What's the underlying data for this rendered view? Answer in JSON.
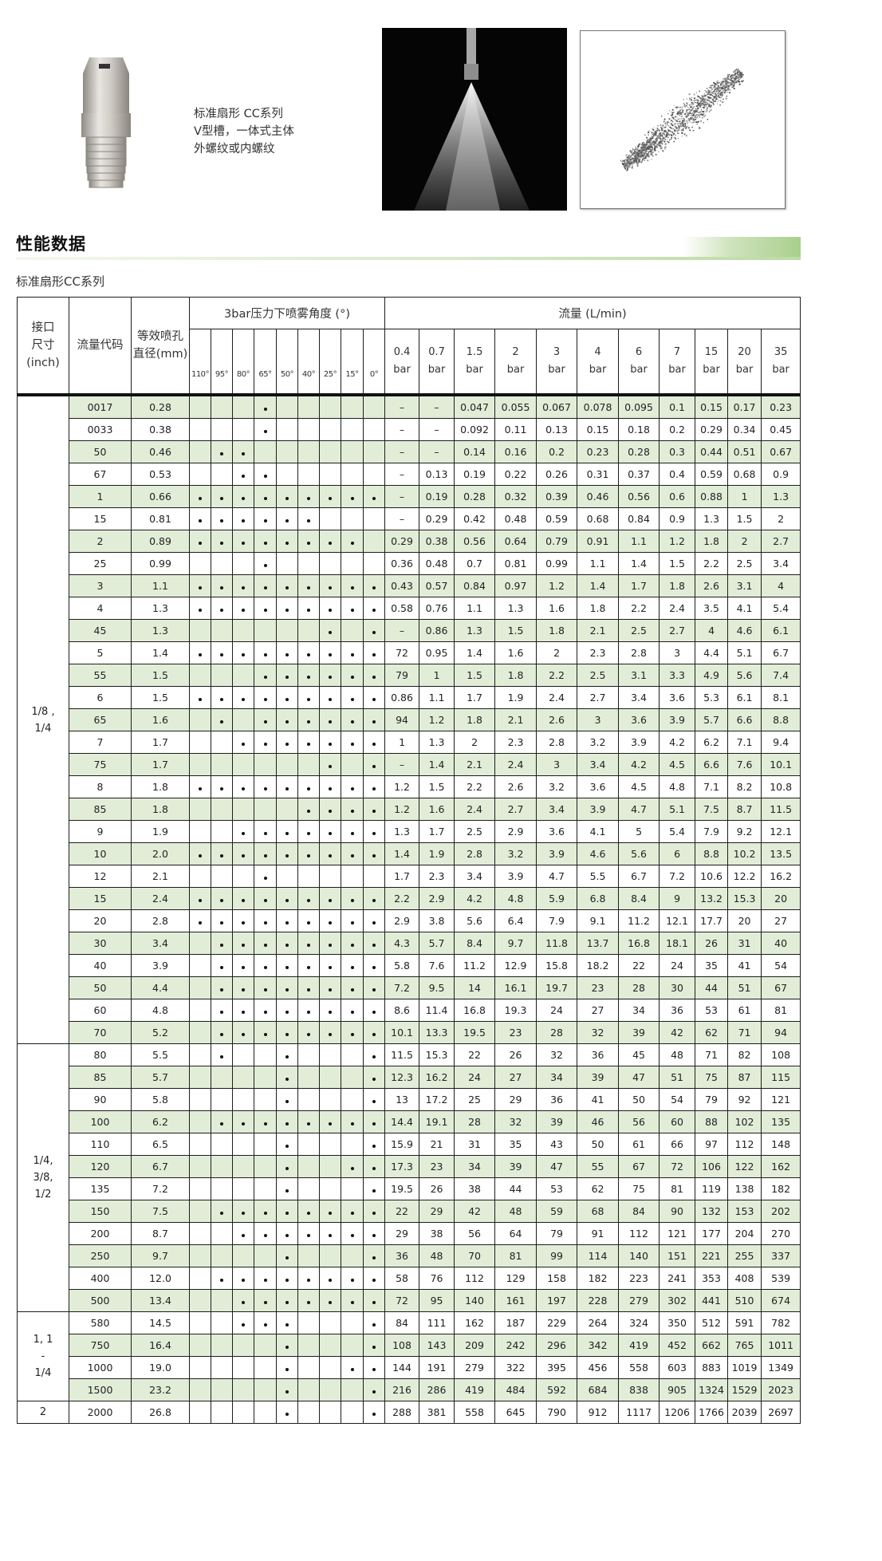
{
  "product": {
    "description_lines": [
      "标准扇形 CC系列",
      "V型槽，一体式主体",
      "外螺纹或内螺纹"
    ]
  },
  "section": {
    "title": "性能数据",
    "subtitle": "标准扇形CC系列",
    "accent_color": "#a9cf8d",
    "row_stripe_color": "#e2edd8"
  },
  "table": {
    "headers": {
      "inch": "接口\n尺寸\n(inch)",
      "code": "流量代码",
      "diameter": "等效喷孔\n直径(mm)",
      "angle_group": "3bar压力下喷雾角度 (°)",
      "flow_group": "流量 (L/min)"
    },
    "angles": [
      "110°",
      "95°",
      "80°",
      "65°",
      "50°",
      "40°",
      "25°",
      "15°",
      "0°"
    ],
    "pressures": [
      "0.4\nbar",
      "0.7\nbar",
      "1.5\nbar",
      "2\nbar",
      "3\nbar",
      "4\nbar",
      "6\nbar",
      "7\nbar",
      "15\nbar",
      "20\nbar",
      "35\nbar"
    ],
    "groups": [
      {
        "label": "1/8 ,\n1/4",
        "rows": 29
      },
      {
        "label": "1/4,\n3/8,\n1/2",
        "rows": 12
      },
      {
        "label": "1, 1\n-\n1/4",
        "rows": 4
      },
      {
        "label": "2",
        "rows": 1
      }
    ],
    "rows": [
      {
        "code": "0017",
        "d": "0.28",
        "a": "000100000",
        "f": [
          "–",
          "–",
          "0.047",
          "0.055",
          "0.067",
          "0.078",
          "0.095",
          "0.1",
          "0.15",
          "0.17",
          "0.23"
        ]
      },
      {
        "code": "0033",
        "d": "0.38",
        "a": "000100000",
        "f": [
          "–",
          "–",
          "0.092",
          "0.11",
          "0.13",
          "0.15",
          "0.18",
          "0.2",
          "0.29",
          "0.34",
          "0.45"
        ]
      },
      {
        "code": "50",
        "d": "0.46",
        "a": "011000000",
        "f": [
          "–",
          "–",
          "0.14",
          "0.16",
          "0.2",
          "0.23",
          "0.28",
          "0.3",
          "0.44",
          "0.51",
          "0.67"
        ]
      },
      {
        "code": "67",
        "d": "0.53",
        "a": "001100000",
        "f": [
          "–",
          "0.13",
          "0.19",
          "0.22",
          "0.26",
          "0.31",
          "0.37",
          "0.4",
          "0.59",
          "0.68",
          "0.9"
        ]
      },
      {
        "code": "1",
        "d": "0.66",
        "a": "111111111",
        "f": [
          "–",
          "0.19",
          "0.28",
          "0.32",
          "0.39",
          "0.46",
          "0.56",
          "0.6",
          "0.88",
          "1",
          "1.3"
        ]
      },
      {
        "code": "15",
        "d": "0.81",
        "a": "111111000",
        "f": [
          "–",
          "0.29",
          "0.42",
          "0.48",
          "0.59",
          "0.68",
          "0.84",
          "0.9",
          "1.3",
          "1.5",
          "2"
        ]
      },
      {
        "code": "2",
        "d": "0.89",
        "a": "111111110",
        "f": [
          "0.29",
          "0.38",
          "0.56",
          "0.64",
          "0.79",
          "0.91",
          "1.1",
          "1.2",
          "1.8",
          "2",
          "2.7"
        ]
      },
      {
        "code": "25",
        "d": "0.99",
        "a": "000100000",
        "f": [
          "0.36",
          "0.48",
          "0.7",
          "0.81",
          "0.99",
          "1.1",
          "1.4",
          "1.5",
          "2.2",
          "2.5",
          "3.4"
        ]
      },
      {
        "code": "3",
        "d": "1.1",
        "a": "111111111",
        "f": [
          "0.43",
          "0.57",
          "0.84",
          "0.97",
          "1.2",
          "1.4",
          "1.7",
          "1.8",
          "2.6",
          "3.1",
          "4"
        ]
      },
      {
        "code": "4",
        "d": "1.3",
        "a": "111111111",
        "f": [
          "0.58",
          "0.76",
          "1.1",
          "1.3",
          "1.6",
          "1.8",
          "2.2",
          "2.4",
          "3.5",
          "4.1",
          "5.4"
        ]
      },
      {
        "code": "45",
        "d": "1.3",
        "a": "000000101",
        "f": [
          "–",
          "0.86",
          "1.3",
          "1.5",
          "1.8",
          "2.1",
          "2.5",
          "2.7",
          "4",
          "4.6",
          "6.1"
        ]
      },
      {
        "code": "5",
        "d": "1.4",
        "a": "111111111",
        "f": [
          "72",
          "0.95",
          "1.4",
          "1.6",
          "2",
          "2.3",
          "2.8",
          "3",
          "4.4",
          "5.1",
          "6.7"
        ]
      },
      {
        "code": "55",
        "d": "1.5",
        "a": "000111111",
        "f": [
          "79",
          "1",
          "1.5",
          "1.8",
          "2.2",
          "2.5",
          "3.1",
          "3.3",
          "4.9",
          "5.6",
          "7.4"
        ]
      },
      {
        "code": "6",
        "d": "1.5",
        "a": "111111111",
        "f": [
          "0.86",
          "1.1",
          "1.7",
          "1.9",
          "2.4",
          "2.7",
          "3.4",
          "3.6",
          "5.3",
          "6.1",
          "8.1"
        ]
      },
      {
        "code": "65",
        "d": "1.6",
        "a": "010111111",
        "f": [
          "94",
          "1.2",
          "1.8",
          "2.1",
          "2.6",
          "3",
          "3.6",
          "3.9",
          "5.7",
          "6.6",
          "8.8"
        ]
      },
      {
        "code": "7",
        "d": "1.7",
        "a": "001111111",
        "f": [
          "1",
          "1.3",
          "2",
          "2.3",
          "2.8",
          "3.2",
          "3.9",
          "4.2",
          "6.2",
          "7.1",
          "9.4"
        ]
      },
      {
        "code": "75",
        "d": "1.7",
        "a": "000000101",
        "f": [
          "–",
          "1.4",
          "2.1",
          "2.4",
          "3",
          "3.4",
          "4.2",
          "4.5",
          "6.6",
          "7.6",
          "10.1"
        ]
      },
      {
        "code": "8",
        "d": "1.8",
        "a": "111111111",
        "f": [
          "1.2",
          "1.5",
          "2.2",
          "2.6",
          "3.2",
          "3.6",
          "4.5",
          "4.8",
          "7.1",
          "8.2",
          "10.8"
        ]
      },
      {
        "code": "85",
        "d": "1.8",
        "a": "000001111",
        "f": [
          "1.2",
          "1.6",
          "2.4",
          "2.7",
          "3.4",
          "3.9",
          "4.7",
          "5.1",
          "7.5",
          "8.7",
          "11.5"
        ]
      },
      {
        "code": "9",
        "d": "1.9",
        "a": "001111111",
        "f": [
          "1.3",
          "1.7",
          "2.5",
          "2.9",
          "3.6",
          "4.1",
          "5",
          "5.4",
          "7.9",
          "9.2",
          "12.1"
        ]
      },
      {
        "code": "10",
        "d": "2.0",
        "a": "111111111",
        "f": [
          "1.4",
          "1.9",
          "2.8",
          "3.2",
          "3.9",
          "4.6",
          "5.6",
          "6",
          "8.8",
          "10.2",
          "13.5"
        ]
      },
      {
        "code": "12",
        "d": "2.1",
        "a": "000100000",
        "f": [
          "1.7",
          "2.3",
          "3.4",
          "3.9",
          "4.7",
          "5.5",
          "6.7",
          "7.2",
          "10.6",
          "12.2",
          "16.2"
        ]
      },
      {
        "code": "15",
        "d": "2.4",
        "a": "111111111",
        "f": [
          "2.2",
          "2.9",
          "4.2",
          "4.8",
          "5.9",
          "6.8",
          "8.4",
          "9",
          "13.2",
          "15.3",
          "20"
        ]
      },
      {
        "code": "20",
        "d": "2.8",
        "a": "111111111",
        "f": [
          "2.9",
          "3.8",
          "5.6",
          "6.4",
          "7.9",
          "9.1",
          "11.2",
          "12.1",
          "17.7",
          "20",
          "27"
        ]
      },
      {
        "code": "30",
        "d": "3.4",
        "a": "011111111",
        "f": [
          "4.3",
          "5.7",
          "8.4",
          "9.7",
          "11.8",
          "13.7",
          "16.8",
          "18.1",
          "26",
          "31",
          "40"
        ]
      },
      {
        "code": "40",
        "d": "3.9",
        "a": "011111111",
        "f": [
          "5.8",
          "7.6",
          "11.2",
          "12.9",
          "15.8",
          "18.2",
          "22",
          "24",
          "35",
          "41",
          "54"
        ]
      },
      {
        "code": "50",
        "d": "4.4",
        "a": "011111111",
        "f": [
          "7.2",
          "9.5",
          "14",
          "16.1",
          "19.7",
          "23",
          "28",
          "30",
          "44",
          "51",
          "67"
        ]
      },
      {
        "code": "60",
        "d": "4.8",
        "a": "011111111",
        "f": [
          "8.6",
          "11.4",
          "16.8",
          "19.3",
          "24",
          "27",
          "34",
          "36",
          "53",
          "61",
          "81"
        ]
      },
      {
        "code": "70",
        "d": "5.2",
        "a": "011111111",
        "f": [
          "10.1",
          "13.3",
          "19.5",
          "23",
          "28",
          "32",
          "39",
          "42",
          "62",
          "71",
          "94"
        ]
      },
      {
        "code": "80",
        "d": "5.5",
        "a": "010010001",
        "f": [
          "11.5",
          "15.3",
          "22",
          "26",
          "32",
          "36",
          "45",
          "48",
          "71",
          "82",
          "108"
        ]
      },
      {
        "code": "85",
        "d": "5.7",
        "a": "000010001",
        "f": [
          "12.3",
          "16.2",
          "24",
          "27",
          "34",
          "39",
          "47",
          "51",
          "75",
          "87",
          "115"
        ]
      },
      {
        "code": "90",
        "d": "5.8",
        "a": "000010001",
        "f": [
          "13",
          "17.2",
          "25",
          "29",
          "36",
          "41",
          "50",
          "54",
          "79",
          "92",
          "121"
        ]
      },
      {
        "code": "100",
        "d": "6.2",
        "a": "011111111",
        "f": [
          "14.4",
          "19.1",
          "28",
          "32",
          "39",
          "46",
          "56",
          "60",
          "88",
          "102",
          "135"
        ]
      },
      {
        "code": "110",
        "d": "6.5",
        "a": "000010001",
        "f": [
          "15.9",
          "21",
          "31",
          "35",
          "43",
          "50",
          "61",
          "66",
          "97",
          "112",
          "148"
        ]
      },
      {
        "code": "120",
        "d": "6.7",
        "a": "000010011",
        "f": [
          "17.3",
          "23",
          "34",
          "39",
          "47",
          "55",
          "67",
          "72",
          "106",
          "122",
          "162"
        ]
      },
      {
        "code": "135",
        "d": "7.2",
        "a": "000010001",
        "f": [
          "19.5",
          "26",
          "38",
          "44",
          "53",
          "62",
          "75",
          "81",
          "119",
          "138",
          "182"
        ]
      },
      {
        "code": "150",
        "d": "7.5",
        "a": "011111111",
        "f": [
          "22",
          "29",
          "42",
          "48",
          "59",
          "68",
          "84",
          "90",
          "132",
          "153",
          "202"
        ]
      },
      {
        "code": "200",
        "d": "8.7",
        "a": "001111111",
        "f": [
          "29",
          "38",
          "56",
          "64",
          "79",
          "91",
          "112",
          "121",
          "177",
          "204",
          "270"
        ]
      },
      {
        "code": "250",
        "d": "9.7",
        "a": "000010001",
        "f": [
          "36",
          "48",
          "70",
          "81",
          "99",
          "114",
          "140",
          "151",
          "221",
          "255",
          "337"
        ]
      },
      {
        "code": "400",
        "d": "12.0",
        "a": "011111111",
        "f": [
          "58",
          "76",
          "112",
          "129",
          "158",
          "182",
          "223",
          "241",
          "353",
          "408",
          "539"
        ]
      },
      {
        "code": "500",
        "d": "13.4",
        "a": "001111111",
        "f": [
          "72",
          "95",
          "140",
          "161",
          "197",
          "228",
          "279",
          "302",
          "441",
          "510",
          "674"
        ]
      },
      {
        "code": "580",
        "d": "14.5",
        "a": "001110001",
        "f": [
          "84",
          "111",
          "162",
          "187",
          "229",
          "264",
          "324",
          "350",
          "512",
          "591",
          "782"
        ]
      },
      {
        "code": "750",
        "d": "16.4",
        "a": "000010001",
        "f": [
          "108",
          "143",
          "209",
          "242",
          "296",
          "342",
          "419",
          "452",
          "662",
          "765",
          "1011"
        ]
      },
      {
        "code": "1000",
        "d": "19.0",
        "a": "000010011",
        "f": [
          "144",
          "191",
          "279",
          "322",
          "395",
          "456",
          "558",
          "603",
          "883",
          "1019",
          "1349"
        ]
      },
      {
        "code": "1500",
        "d": "23.2",
        "a": "000010001",
        "f": [
          "216",
          "286",
          "419",
          "484",
          "592",
          "684",
          "838",
          "905",
          "1324",
          "1529",
          "2023"
        ]
      },
      {
        "code": "2000",
        "d": "26.8",
        "a": "000010001",
        "f": [
          "288",
          "381",
          "558",
          "645",
          "790",
          "912",
          "1117",
          "1206",
          "1766",
          "2039",
          "2697"
        ]
      }
    ]
  }
}
